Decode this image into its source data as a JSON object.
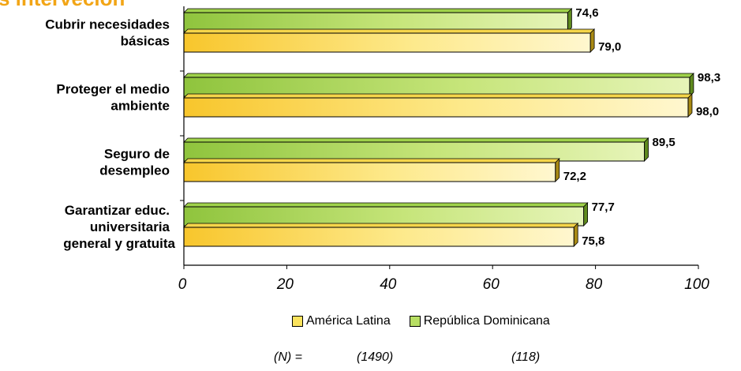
{
  "title_fragment": "s interveción",
  "colors": {
    "america_latina": "#fbe35d",
    "republica_dominicana": "#b7de63"
  },
  "chart_data": {
    "type": "bar",
    "orientation": "horizontal",
    "categories": [
      [
        "Cubrir necesidades",
        "básicas"
      ],
      [
        "Proteger el medio",
        "ambiente"
      ],
      [
        "Seguro de",
        "desempleo"
      ],
      [
        "Garantizar educ.",
        "universitaria",
        "general y gratuita"
      ]
    ],
    "series": [
      {
        "name": "República Dominicana",
        "values": [
          74.6,
          98.3,
          89.5,
          77.7
        ],
        "labels": [
          "74,6",
          "98,3",
          "89,5",
          "77,7"
        ]
      },
      {
        "name": "América Latina",
        "values": [
          79.0,
          98.0,
          72.2,
          75.8
        ],
        "labels": [
          "79,0",
          "98,0",
          "72,2",
          "75,8"
        ]
      }
    ],
    "xlim": [
      0,
      100
    ],
    "xticks": [
      0,
      20,
      40,
      60,
      80,
      100
    ],
    "xtick_labels": [
      "0",
      "20",
      "40",
      "60",
      "80",
      "100"
    ],
    "legend": [
      "América Latina",
      "República Dominicana"
    ],
    "legend_position": "bottom",
    "grid": false
  },
  "footnote": {
    "n_label": "(N) =",
    "america_latina_n": "(1490)",
    "republica_dominicana_n": "(118)"
  }
}
